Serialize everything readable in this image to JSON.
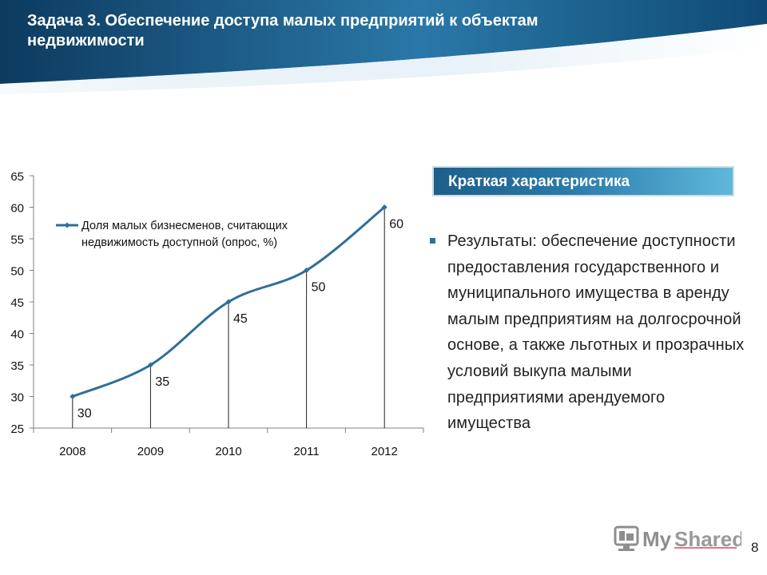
{
  "slide": {
    "title": "Задача 3. Обеспечение доступа малых предприятий к объектам недвижимости",
    "summary_title": "Краткая характеристика",
    "result_text": "Результаты: обеспечение доступности предоставления государственного и муниципального имущества в аренду малым предприятиям на долгосрочной основе, а также льготных и прозрачных условий выкупа малыми предприятиями арендуемого имущества",
    "page_number": "8",
    "logo_text": "MyShared"
  },
  "colors": {
    "header_dark": "#0d3a5f",
    "header_light": "#4a9bc7",
    "line": "#2e6e9a",
    "accent": "#2d6f99",
    "logo_gray": "#8e8e8e",
    "logo_red": "#c0282f"
  },
  "chart_data": {
    "type": "line",
    "categories": [
      "2008",
      "2009",
      "2010",
      "2011",
      "2012"
    ],
    "series": [
      {
        "name": "Доля малых бизнесменов, считающих недвижимость доступной (опрос, %)",
        "values": [
          30,
          35,
          45,
          50,
          60
        ]
      }
    ],
    "data_labels": [
      "30",
      "35",
      "45",
      "50",
      "60"
    ],
    "ylim": [
      25,
      65
    ],
    "yticks": [
      25,
      30,
      35,
      40,
      45,
      50,
      55,
      60,
      65
    ],
    "legend_position": "top-left",
    "drop_lines": true,
    "smooth": true
  }
}
